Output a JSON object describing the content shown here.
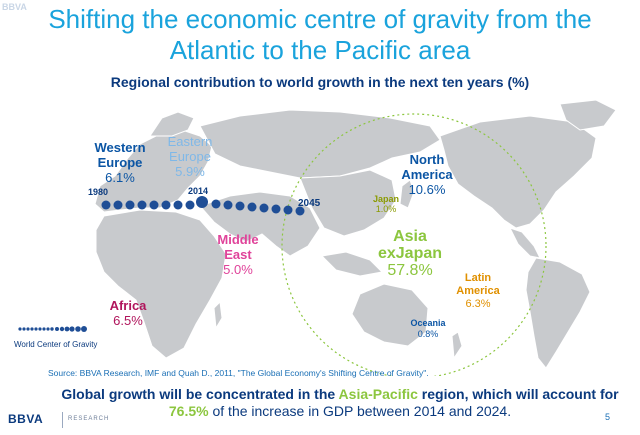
{
  "watermark": "BBVA",
  "title_line1": "Shifting the economic centre of gravity from the",
  "title_line2": "Atlantic to the Pacific area",
  "subtitle": "Regional contribution to world growth in the next ten years (%)",
  "regions": [
    {
      "name": "Western Europe",
      "line1": "Western",
      "line2": "Europe",
      "value": "6.1%",
      "color": "#0b55a4"
    },
    {
      "name": "Eastern Europe",
      "line1": "Eastern",
      "line2": "Europe",
      "value": "5.9%",
      "color": "#7fb8e8"
    },
    {
      "name": "North America",
      "line1": "North",
      "line2": "America",
      "value": "10.6%",
      "color": "#0b55a4"
    },
    {
      "name": "Japan",
      "line1": "Japan",
      "line2": "",
      "value": "1.0%",
      "color": "#8a9a00"
    },
    {
      "name": "Asia exJapan",
      "line1": "Asia",
      "line2": "exJapan",
      "value": "57.8%",
      "color": "#8cc63f"
    },
    {
      "name": "Middle East",
      "line1": "Middle",
      "line2": "East",
      "value": "5.0%",
      "color": "#e0439a"
    },
    {
      "name": "Latin America",
      "line1": "Latin",
      "line2": "America",
      "value": "6.3%",
      "color": "#e09000"
    },
    {
      "name": "Africa",
      "line1": "Africa",
      "line2": "",
      "value": "6.5%",
      "color": "#b0155c"
    },
    {
      "name": "Oceania",
      "line1": "Oceania",
      "line2": "",
      "value": "0.8%",
      "color": "#0b55a4"
    }
  ],
  "path_labels": {
    "start": "1980",
    "middle": "2014",
    "end": "2045"
  },
  "legend_label": "World Center of Gravity",
  "source": "Source: BBVA Research, IMF and Quah D., 2011, \"The Global Economy's Shifting Centre of Gravity\".",
  "bottom": {
    "part1": "Global growth will be concentrated in the ",
    "highlight1": "Asia-Pacific",
    "part2": " region, which will account for ",
    "highlight2": "76.5%",
    "part3": " of the increase in GDP between 2014 and 2024."
  },
  "footer": {
    "logo": "BBVA",
    "research": "RESEARCH",
    "page": "5"
  },
  "colors": {
    "title": "#1aa3dc",
    "navy": "#0b3a7e",
    "dot": "#1f4e96",
    "land": "#c8cacd",
    "circle": "#8cc63f"
  }
}
